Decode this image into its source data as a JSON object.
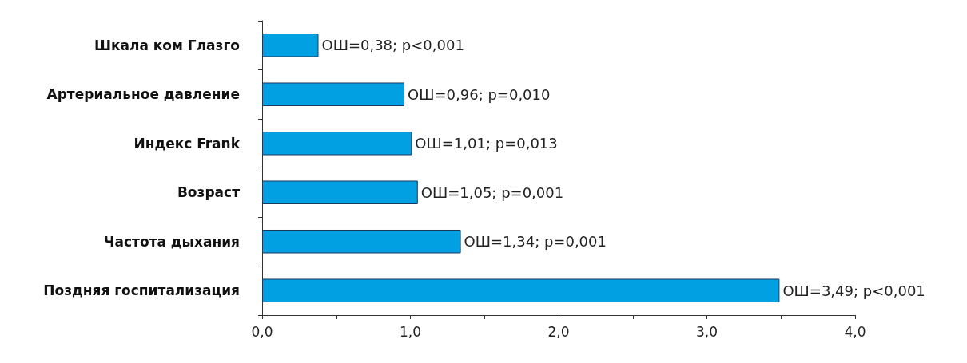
{
  "chart_data": {
    "type": "bar",
    "orientation": "horizontal",
    "categories": [
      "Шкала ком Глазго",
      "Артериальное давление",
      "Индекс Frank",
      "Возраст",
      "Частота дыхания",
      "Поздняя госпитализация"
    ],
    "values": [
      0.38,
      0.96,
      1.01,
      1.05,
      1.34,
      3.49
    ],
    "color": "#00a0e3",
    "value_labels": [
      "ОШ=0,38; p<0,001",
      "ОШ=0,96; p=0,010",
      "ОШ=1,01; p=0,013",
      "ОШ=1,05; p=0,001",
      "ОШ=1,34; p=0,001",
      "ОШ=3,49; p<0,001"
    ],
    "xlim": [
      0,
      4
    ],
    "xticks": [
      {
        "value": 0,
        "label": "0,0"
      },
      {
        "value": 0.5,
        "label": null
      },
      {
        "value": 1,
        "label": "1,0"
      },
      {
        "value": 1.5,
        "label": null
      },
      {
        "value": 2,
        "label": "2,0"
      },
      {
        "value": 2.5,
        "label": null
      },
      {
        "value": 3,
        "label": "3,0"
      },
      {
        "value": 3.5,
        "label": null
      },
      {
        "value": 4,
        "label": "4,0"
      }
    ],
    "grid": false
  }
}
